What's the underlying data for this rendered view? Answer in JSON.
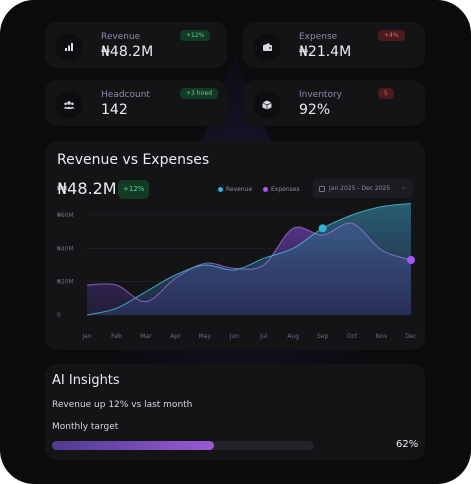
{
  "colors": {
    "revenue": "#2bb4d8",
    "expenses": "#a855f7",
    "positive": "#5fd38c",
    "negative": "#e36a6d"
  },
  "kpis": [
    {
      "label": "Revenue",
      "value": "₦48.2M",
      "badge": "+12%",
      "tone": "positive",
      "icon": "chart-bars-icon"
    },
    {
      "label": "Expense",
      "value": "₦21.4M",
      "badge": "+4%",
      "tone": "negative",
      "icon": "wallet-icon"
    },
    {
      "label": "Headcount",
      "value": "142",
      "badge": "+3 hired",
      "tone": "positive",
      "icon": "users-icon"
    },
    {
      "label": "Inventory",
      "value": "92%",
      "badge": "5",
      "tone": "negative",
      "icon": "box-icon"
    }
  ],
  "chart_card": {
    "title": "Revenue vs Expenses",
    "value": "₦48.2M",
    "badge": "+12%",
    "date_range": "Jan 2025 - Dec 2025"
  },
  "chart_data": {
    "type": "area",
    "title": "Revenue vs Expenses",
    "x": [
      "Jan",
      "Feb",
      "Mar",
      "Apr",
      "May",
      "Jun",
      "Jul",
      "Aug",
      "Sep",
      "Oct",
      "Nov",
      "Dec"
    ],
    "series": [
      {
        "name": "Revenue",
        "values": [
          0,
          4,
          14,
          24,
          30,
          27,
          34,
          40,
          52,
          60,
          65,
          67
        ]
      },
      {
        "name": "Expenses",
        "values": [
          18,
          18,
          8,
          22,
          31,
          28,
          30,
          52,
          48,
          55,
          39,
          33
        ]
      }
    ],
    "ylim": [
      0,
      60
    ],
    "yticks": [
      0,
      20,
      40,
      60
    ],
    "ytick_labels": [
      "0",
      "₦20M",
      "₦40M",
      "₦60M"
    ],
    "grid": true,
    "legend": "top-right"
  },
  "ai": {
    "title": "AI Insights",
    "insight": "Revenue up 12% vs last month",
    "target_label": "Monthly target",
    "target_progress": 0.62,
    "target_text": "62%"
  }
}
